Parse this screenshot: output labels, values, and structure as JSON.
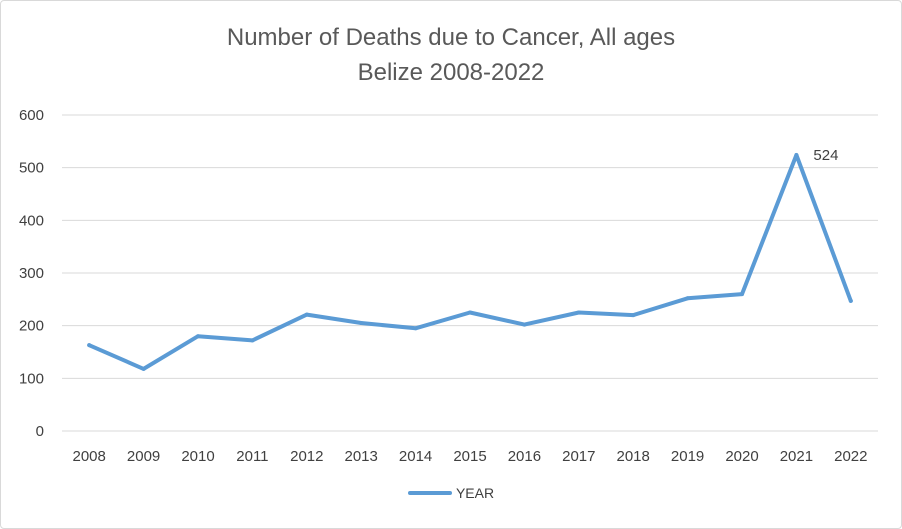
{
  "chart_data": {
    "type": "line",
    "title": [
      "Number of Deaths due to Cancer, All ages",
      "Belize 2008-2022"
    ],
    "xlabel": "",
    "ylabel": "",
    "ylim": [
      0,
      600
    ],
    "yticks": [
      0,
      100,
      200,
      300,
      400,
      500,
      600
    ],
    "categories": [
      "2008",
      "2009",
      "2010",
      "2011",
      "2012",
      "2013",
      "2014",
      "2015",
      "2016",
      "2017",
      "2018",
      "2019",
      "2020",
      "2021",
      "2022"
    ],
    "series": [
      {
        "name": "YEAR",
        "color": "#5b9bd5",
        "values": [
          163,
          118,
          180,
          172,
          221,
          205,
          195,
          225,
          202,
          225,
          220,
          252,
          260,
          524,
          247
        ]
      }
    ],
    "annotations": [
      {
        "category": "2021",
        "text": "524"
      }
    ],
    "grid": true,
    "legend": "bottom-center"
  }
}
